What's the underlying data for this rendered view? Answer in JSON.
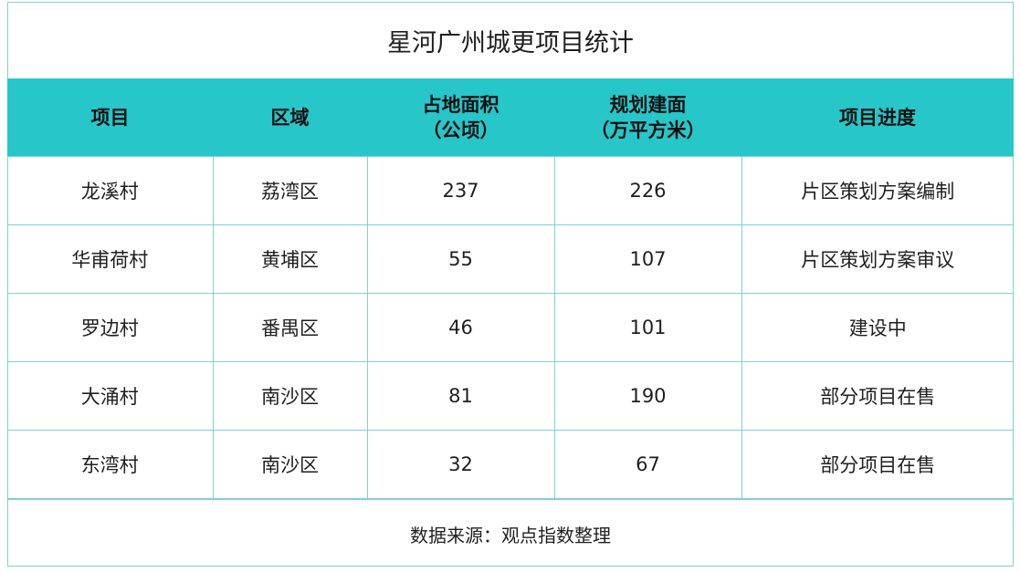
{
  "title": "星河广州城更项目统计",
  "headers": [
    "项目",
    "区域",
    "占地面积\n（公顷）",
    "规划建面\n（万平方米）",
    "项目进度"
  ],
  "rows": [
    [
      "龙溪村",
      "荔湾区",
      "237",
      "226",
      "片区策划方案编制"
    ],
    [
      "华甫荷村",
      "黄埔区",
      "55",
      "107",
      "片区策划方案审议"
    ],
    [
      "罗边村",
      "番禺区",
      "46",
      "101",
      "建设中"
    ],
    [
      "大涌村",
      "南沙区",
      "81",
      "190",
      "部分项目在售"
    ],
    [
      "东湾村",
      "南沙区",
      "32",
      "67",
      "部分项目在售"
    ]
  ],
  "footer": "数据来源：观点指数整理",
  "colors": {
    "header_bg": "#26c6c9",
    "border": "#7fd0d6"
  }
}
